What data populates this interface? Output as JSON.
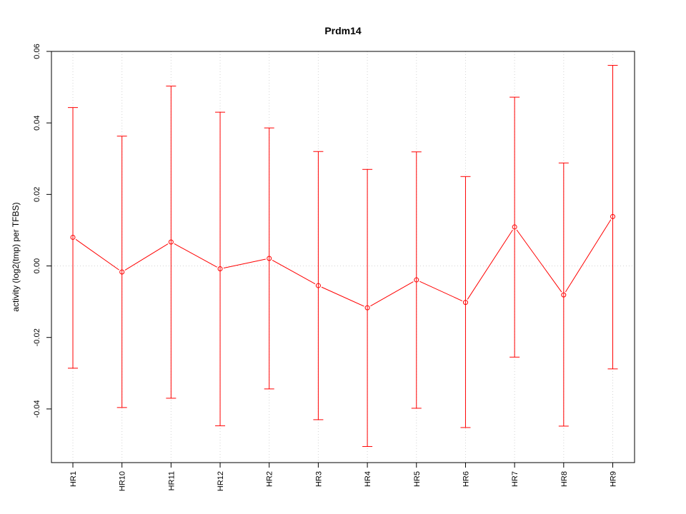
{
  "chart_data": {
    "type": "line",
    "title": "Prdm14",
    "xlabel": "",
    "ylabel": "activity (log2(tmp) per TFBS)",
    "categories": [
      "HR1",
      "HR10",
      "HR11",
      "HR12",
      "HR2",
      "HR3",
      "HR4",
      "HR5",
      "HR6",
      "HR7",
      "HR8",
      "HR9"
    ],
    "series": [
      {
        "values": [
          0.008,
          -0.0017,
          0.0067,
          -0.0008,
          0.0021,
          -0.0055,
          -0.0117,
          -0.0039,
          -0.0102,
          0.0109,
          -0.0081,
          0.0138
        ],
        "upper": [
          0.0443,
          0.0363,
          0.0503,
          0.043,
          0.0386,
          0.032,
          0.027,
          0.0319,
          0.025,
          0.0472,
          0.0288,
          0.0561
        ],
        "lower": [
          -0.0286,
          -0.0396,
          -0.037,
          -0.0447,
          -0.0344,
          -0.043,
          -0.0505,
          -0.0398,
          -0.0452,
          -0.0255,
          -0.0448,
          -0.0288
        ]
      }
    ],
    "ylim": [
      -0.055,
      0.06
    ],
    "yticks": [
      -0.04,
      -0.02,
      0.0,
      0.02,
      0.04,
      0.06
    ],
    "ytick_labels": [
      "-0.04",
      "-0.02",
      "0.00",
      "0.02",
      "0.04",
      "0.06"
    ],
    "grid": true,
    "colors": {
      "series": "#ff0000",
      "grid": "#d3d3d3"
    }
  }
}
